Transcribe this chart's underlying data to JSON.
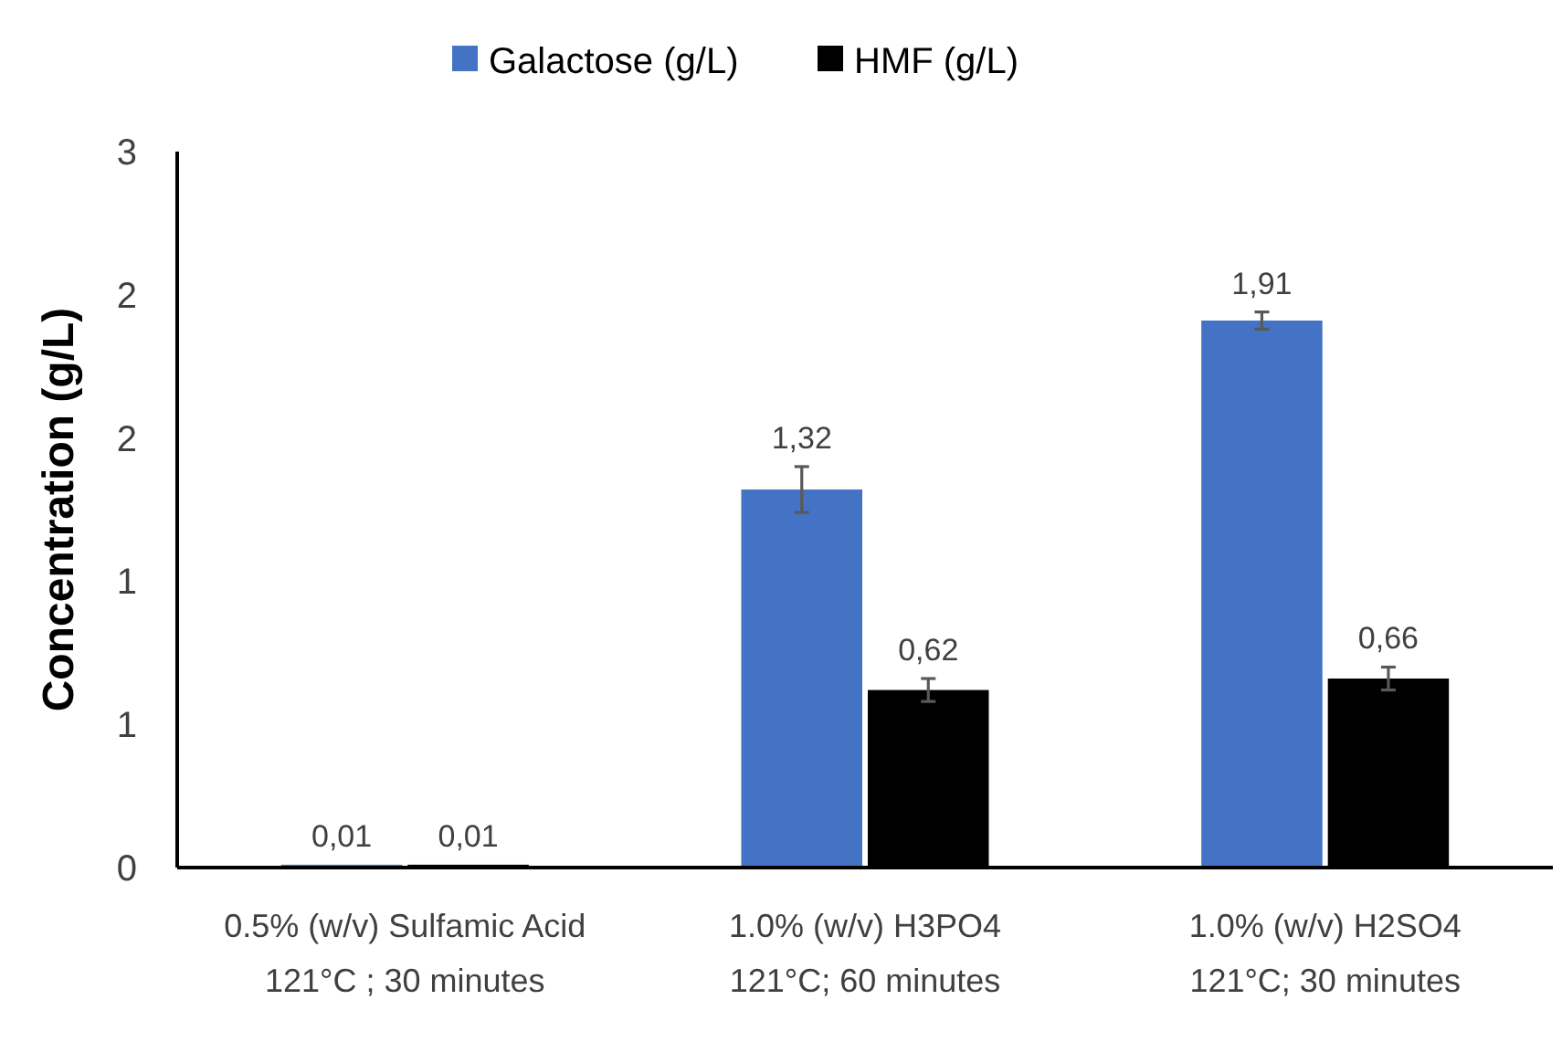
{
  "chart_data": {
    "type": "bar",
    "ylabel": "Concentration (g/L)",
    "categories": [
      "0.5% (w/v) Sulfamic Acid\n121°C ; 30 minutes",
      "1.0% (w/v) H3PO4\n121°C; 60 minutes",
      "1.0% (w/v) H2SO4\n121°C; 30 minutes"
    ],
    "series": [
      {
        "name": "Galactose (g/L)",
        "color": "#4472c4",
        "values": [
          0.01,
          1.32,
          1.91
        ],
        "errors": [
          null,
          0.08,
          0.03
        ],
        "value_labels": [
          "0,01",
          "1,32",
          "1,91"
        ]
      },
      {
        "name": "HMF (g/L)",
        "color": "#000000",
        "values": [
          0.01,
          0.62,
          0.66
        ],
        "errors": [
          null,
          0.04,
          0.04
        ],
        "value_labels": [
          "0,01",
          "0,62",
          "0,66"
        ]
      }
    ],
    "ylim": [
      0,
      2.5
    ],
    "yticks": [
      0,
      {
        "value": 0.5,
        "label": "1"
      },
      {
        "value": 1,
        "label": "1"
      },
      {
        "value": 1.5,
        "label": "2"
      },
      {
        "value": 2,
        "label": "2"
      },
      {
        "value": 2.5,
        "label": "3"
      }
    ],
    "grid": false,
    "legend": "top"
  }
}
